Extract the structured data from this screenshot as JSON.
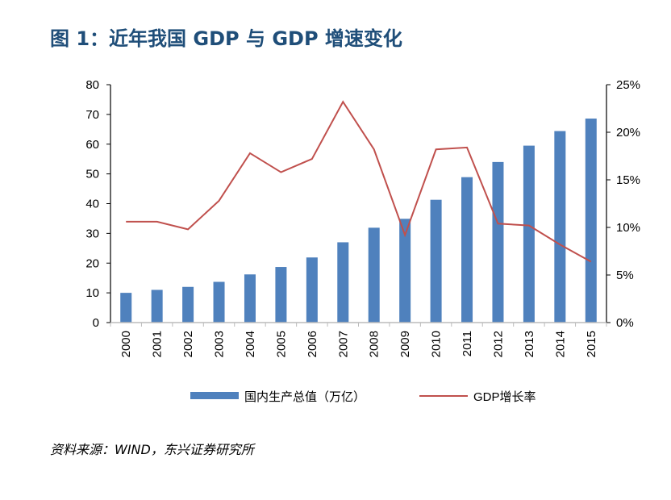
{
  "title": "图 1：近年我国 GDP 与 GDP 增速变化",
  "source": "资料来源：WIND，东兴证券研究所",
  "chart_data": {
    "type": "bar+line",
    "categories": [
      "2000",
      "2001",
      "2002",
      "2003",
      "2004",
      "2005",
      "2006",
      "2007",
      "2008",
      "2009",
      "2010",
      "2011",
      "2012",
      "2013",
      "2014",
      "2015"
    ],
    "series": [
      {
        "name": "国内生产总值（万亿）",
        "type": "bar",
        "axis": "left",
        "color": "#4f81bd",
        "values": [
          10.0,
          11.0,
          12.0,
          13.7,
          16.2,
          18.7,
          21.9,
          27.0,
          31.9,
          34.9,
          41.3,
          48.9,
          54.0,
          59.5,
          64.4,
          68.6
        ]
      },
      {
        "name": "GDP增长率",
        "type": "line",
        "axis": "right",
        "color": "#c0504d",
        "values": [
          10.6,
          10.6,
          9.8,
          12.8,
          17.8,
          15.8,
          17.2,
          23.2,
          18.2,
          9.2,
          18.2,
          18.4,
          10.4,
          10.2,
          8.2,
          6.4
        ]
      }
    ],
    "yleft": {
      "range": [
        0,
        80
      ],
      "ticks": [
        0,
        10,
        20,
        30,
        40,
        50,
        60,
        70,
        80
      ]
    },
    "yright": {
      "range": [
        0,
        25
      ],
      "ticks": [
        "0%",
        "5%",
        "10%",
        "15%",
        "20%",
        "25%"
      ]
    },
    "legend": "bottom",
    "grid": false
  }
}
